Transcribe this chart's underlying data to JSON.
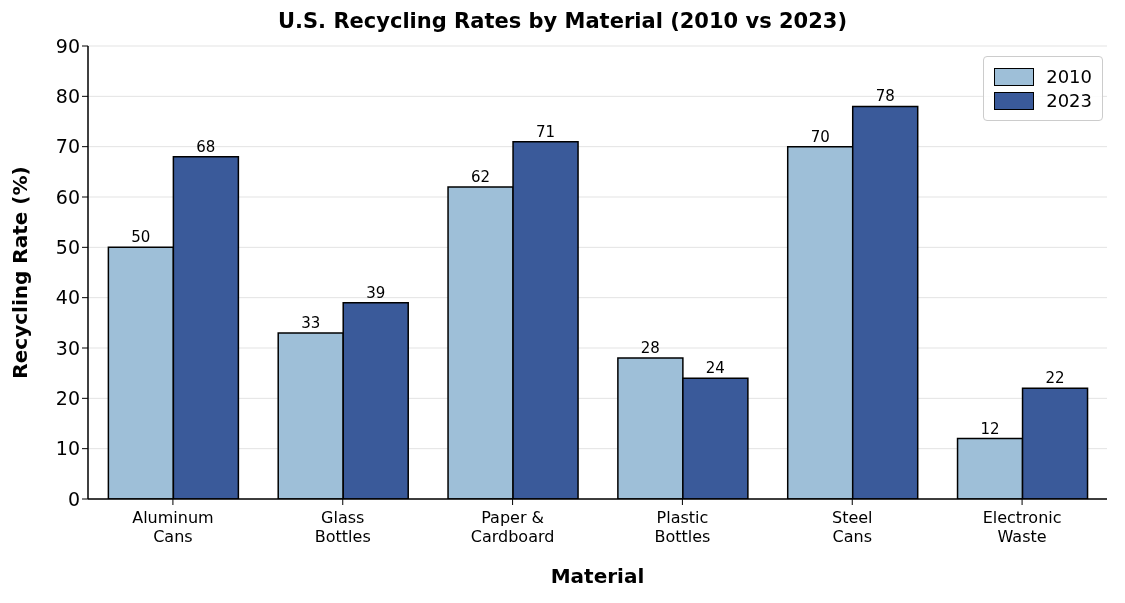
{
  "chart_data": {
    "type": "bar",
    "title": "U.S. Recycling Rates by Material (2010 vs 2023)",
    "xlabel": "Material",
    "ylabel": "Recycling Rate (%)",
    "categories": [
      "Aluminum\nCans",
      "Glass\nBottles",
      "Paper &\nCardboard",
      "Plastic\nBottles",
      "Steel\nCans",
      "Electronic\nWaste"
    ],
    "series": [
      {
        "name": "2010",
        "color": "#9ebfd8",
        "values": [
          50,
          33,
          62,
          28,
          70,
          12
        ]
      },
      {
        "name": "2023",
        "color": "#3a5a9a",
        "values": [
          68,
          39,
          71,
          24,
          78,
          22
        ]
      }
    ],
    "ylim": [
      0,
      90
    ],
    "yticks": [
      0,
      10,
      20,
      30,
      40,
      50,
      60,
      70,
      80,
      90
    ],
    "grid": "y",
    "legend": "top right",
    "data_labels": true
  }
}
